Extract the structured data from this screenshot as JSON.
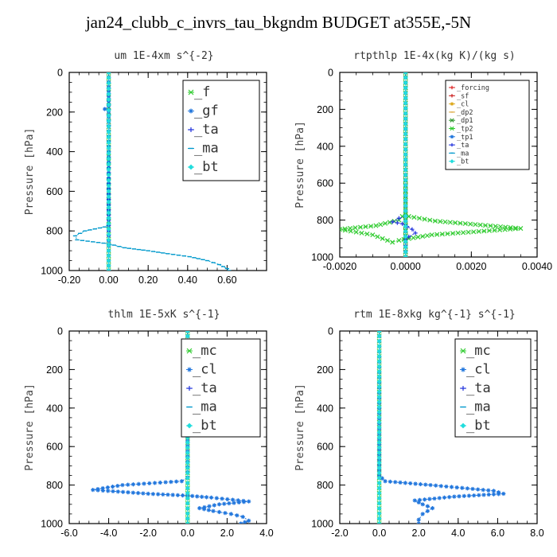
{
  "page_title": "jan24_clubb_c_invrs_tau_bkgndm  BUDGET at355E,-5N",
  "chart_data": [
    {
      "type": "line",
      "title": "um   1E-4xm  s^{-2}",
      "ylabel": "Pressure [hPa]",
      "xlim": [
        -0.2,
        0.8
      ],
      "ylim": [
        1000,
        0
      ],
      "xticks": [
        "-0.20",
        "0.00",
        "0.20",
        "0.40",
        "0.60"
      ],
      "yticks": [
        "0",
        "200",
        "400",
        "600",
        "800",
        "1000"
      ],
      "legend": [
        "_f",
        "_gf",
        "_ta",
        "_ma",
        "_bt"
      ],
      "legend_size": "large",
      "series": [
        {
          "name": "_f",
          "color": "#33cc33",
          "marker": "x",
          "x": [
            0.0,
            0.0,
            0.0,
            0.0,
            0.0,
            0.0
          ],
          "y": [
            0,
            200,
            400,
            600,
            800,
            1000
          ]
        },
        {
          "name": "_gf",
          "color": "#2277dd",
          "marker": "star",
          "x": [
            0.0,
            0.0,
            -0.02,
            0.0,
            0.0,
            0.0,
            0.0
          ],
          "y": [
            0,
            170,
            185,
            200,
            400,
            800,
            1000
          ]
        },
        {
          "name": "_ta",
          "color": "#2233dd",
          "marker": "plus",
          "x": [
            0.0,
            0.0,
            0.0,
            0.0,
            0.0
          ],
          "y": [
            0,
            400,
            800,
            900,
            1000
          ]
        },
        {
          "name": "_ma",
          "color": "#0099cc",
          "marker": "dash",
          "x": [
            0.0,
            0.0,
            0.0,
            0.0,
            -0.02,
            -0.12,
            -0.17,
            -0.16,
            0.0,
            0.08,
            0.2,
            0.3,
            0.41,
            0.5,
            0.56,
            0.6,
            0.61
          ],
          "y": [
            0,
            400,
            700,
            765,
            780,
            800,
            825,
            845,
            865,
            885,
            900,
            915,
            930,
            950,
            970,
            990,
            1000
          ]
        },
        {
          "name": "_bt",
          "color": "#22dddd",
          "marker": "diamond",
          "x": [
            0.0,
            0.0,
            0.0,
            0.0,
            0.0
          ],
          "y": [
            0,
            300,
            600,
            900,
            1000
          ]
        }
      ]
    },
    {
      "type": "line",
      "title": "rtpthlp   1E-4x(kg K)/(kg s)",
      "ylabel": "Pressure [hPa]",
      "xlim": [
        -0.002,
        0.004
      ],
      "ylim": [
        1000,
        0
      ],
      "xticks": [
        "-0.0020",
        "0.0000",
        "0.0020",
        "0.0040"
      ],
      "yticks": [
        "0",
        "200",
        "400",
        "600",
        "800",
        "1000"
      ],
      "legend": [
        "_forcing",
        "_sf",
        "_cl",
        "_dp2",
        "_dp1",
        "_tp2",
        "_tp1",
        "_ta",
        "_ma",
        "_bt"
      ],
      "legend_size": "small",
      "series": [
        {
          "name": "_forcing",
          "color": "#dd2222",
          "marker": "plus",
          "x": [
            0.0,
            0.0,
            0.0
          ],
          "y": [
            0,
            500,
            1000
          ]
        },
        {
          "name": "_sf",
          "color": "#cc2222",
          "marker": "plus",
          "x": [
            0.0,
            0.0,
            0.0
          ],
          "y": [
            0,
            500,
            1000
          ]
        },
        {
          "name": "_cl",
          "color": "#ddaa22",
          "marker": "star",
          "x": [
            0.0,
            0.0,
            0.0
          ],
          "y": [
            0,
            500,
            1000
          ]
        },
        {
          "name": "_dp2",
          "color": "#ddaa44",
          "marker": "dash",
          "x": [
            0.0,
            0.0,
            0.0
          ],
          "y": [
            0,
            500,
            1000
          ]
        },
        {
          "name": "_dp1",
          "color": "#339933",
          "marker": "x",
          "x": [
            0.0,
            0.0,
            0.0
          ],
          "y": [
            0,
            500,
            1000
          ]
        },
        {
          "name": "_tp2",
          "color": "#33cc33",
          "marker": "x",
          "x": [
            0.0,
            0.0,
            0.0,
            0.0001,
            0.0009,
            0.0035,
            0.0008,
            0.0001,
            -0.0002,
            -0.0004,
            -0.001,
            -0.002,
            -0.0009,
            -0.0002,
            -0.0001,
            0.0,
            0.0
          ],
          "y": [
            0,
            500,
            760,
            780,
            805,
            845,
            880,
            900,
            910,
            920,
            880,
            850,
            830,
            800,
            780,
            770,
            1000
          ]
        },
        {
          "name": "_tp1",
          "color": "#2277dd",
          "marker": "star",
          "x": [
            0.0,
            0.0,
            0.0
          ],
          "y": [
            0,
            500,
            1000
          ]
        },
        {
          "name": "_ta",
          "color": "#2233dd",
          "marker": "plus",
          "x": [
            0.0,
            0.0,
            -0.0002,
            -0.0004,
            -0.0001,
            0.0002,
            0.0003,
            0.0001,
            0.0,
            0.0
          ],
          "y": [
            0,
            780,
            790,
            810,
            820,
            850,
            870,
            890,
            905,
            1000
          ]
        },
        {
          "name": "_ma",
          "color": "#0099cc",
          "marker": "dash",
          "x": [
            0.0,
            0.0,
            0.0
          ],
          "y": [
            0,
            500,
            1000
          ]
        },
        {
          "name": "_bt",
          "color": "#22dddd",
          "marker": "diamond",
          "x": [
            0.0,
            0.0,
            0.0
          ],
          "y": [
            0,
            500,
            1000
          ]
        }
      ]
    },
    {
      "type": "line",
      "title": "thlm   1E-5xK  s^{-1}",
      "ylabel": "Pressure [hPa]",
      "xlim": [
        -6.0,
        4.0
      ],
      "ylim": [
        1000,
        0
      ],
      "xticks": [
        "-6.0",
        "-4.0",
        "-2.0",
        "0.0",
        "2.0",
        "4.0"
      ],
      "yticks": [
        "0",
        "200",
        "400",
        "600",
        "800",
        "1000"
      ],
      "legend": [
        "_mc",
        "_cl",
        "_ta",
        "_ma",
        "_bt"
      ],
      "legend_size": "large",
      "series": [
        {
          "name": "_mc",
          "color": "#33cc33",
          "marker": "x",
          "x": [
            0.0,
            0.0,
            0.0
          ],
          "y": [
            0,
            500,
            1000
          ]
        },
        {
          "name": "_cl",
          "color": "#2277dd",
          "marker": "star",
          "x": [
            0.0,
            0.0,
            -0.3,
            -3.3,
            -4.8,
            -2.0,
            0.0,
            1.2,
            3.1,
            1.6,
            0.6,
            1.3,
            2.2,
            2.8,
            3.1,
            2.7
          ],
          "y": [
            0,
            760,
            780,
            800,
            825,
            845,
            855,
            865,
            885,
            900,
            920,
            935,
            950,
            965,
            985,
            1000
          ]
        },
        {
          "name": "_ta",
          "color": "#2233dd",
          "marker": "plus",
          "x": [
            0.0,
            0.0,
            0.0
          ],
          "y": [
            0,
            500,
            1000
          ]
        },
        {
          "name": "_ma",
          "color": "#0099cc",
          "marker": "dash",
          "x": [
            0.0,
            0.0,
            0.0
          ],
          "y": [
            0,
            500,
            1000
          ]
        },
        {
          "name": "_bt",
          "color": "#22dddd",
          "marker": "diamond",
          "x": [
            0.0,
            0.0,
            0.0
          ],
          "y": [
            0,
            500,
            1000
          ]
        }
      ]
    },
    {
      "type": "line",
      "title": "rtm   1E-8xkg  kg^{-1}  s^{-1}",
      "ylabel": "Pressure [hPa]",
      "xlim": [
        -2.0,
        8.0
      ],
      "ylim": [
        1000,
        0
      ],
      "xticks": [
        "-2.0",
        "0.0",
        "2.0",
        "4.0",
        "6.0",
        "8.0"
      ],
      "yticks": [
        "0",
        "200",
        "400",
        "600",
        "800",
        "1000"
      ],
      "legend": [
        "_mc",
        "_cl",
        "_ta",
        "_ma",
        "_bt"
      ],
      "legend_size": "large",
      "series": [
        {
          "name": "_mc",
          "color": "#33cc33",
          "marker": "x",
          "x": [
            0.0,
            0.0,
            0.0
          ],
          "y": [
            0,
            500,
            1000
          ]
        },
        {
          "name": "_cl",
          "color": "#2277dd",
          "marker": "star",
          "x": [
            0.0,
            0.0,
            0.3,
            2.6,
            5.8,
            6.3,
            3.8,
            1.8,
            2.2,
            2.7,
            2.2,
            2.0,
            2.0
          ],
          "y": [
            0,
            750,
            780,
            800,
            830,
            845,
            860,
            880,
            900,
            920,
            950,
            980,
            1000
          ]
        },
        {
          "name": "_ta",
          "color": "#2233dd",
          "marker": "plus",
          "x": [
            0.0,
            0.0,
            0.0
          ],
          "y": [
            0,
            500,
            1000
          ]
        },
        {
          "name": "_ma",
          "color": "#0099cc",
          "marker": "dash",
          "x": [
            0.0,
            0.0,
            0.0
          ],
          "y": [
            0,
            500,
            1000
          ]
        },
        {
          "name": "_bt",
          "color": "#22dddd",
          "marker": "diamond",
          "x": [
            0.0,
            0.0,
            0.0
          ],
          "y": [
            0,
            500,
            1000
          ]
        }
      ]
    }
  ]
}
